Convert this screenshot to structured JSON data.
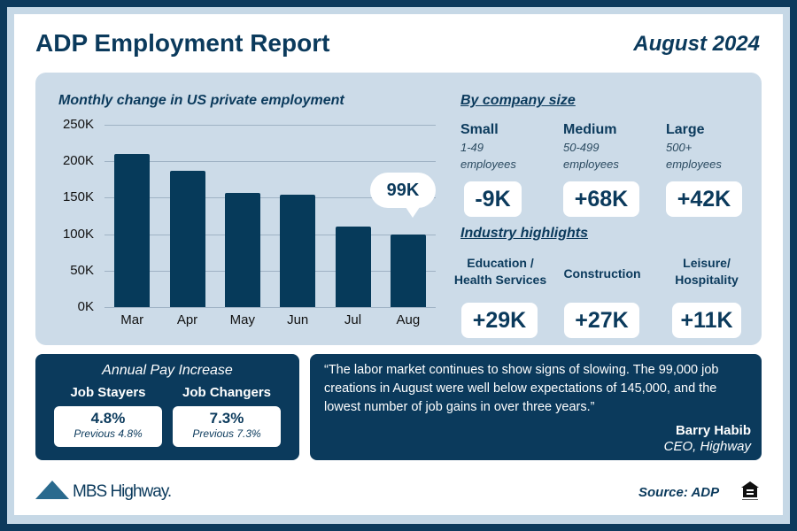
{
  "header": {
    "title": "ADP Employment Report",
    "date": "August 2024"
  },
  "chart_data": {
    "type": "bar",
    "title": "Monthly change in US private employment",
    "categories": [
      "Mar",
      "Apr",
      "May",
      "Jun",
      "Jul",
      "Aug"
    ],
    "values": [
      210,
      187,
      156,
      154,
      110,
      99
    ],
    "unit": "K",
    "ylim": [
      0,
      250
    ],
    "yticks": [
      "0K",
      "50K",
      "100K",
      "150K",
      "200K",
      "250K"
    ],
    "grid": true,
    "callout": "99K",
    "bar_color": "#063a5a"
  },
  "company_size": {
    "title": "By company size",
    "items": [
      {
        "label": "Small",
        "range": "1-49",
        "sub": "employees",
        "value": "-9K"
      },
      {
        "label": "Medium",
        "range": "50-499",
        "sub": "employees",
        "value": "+68K"
      },
      {
        "label": "Large",
        "range": "500+",
        "sub": "employees",
        "value": "+42K"
      }
    ]
  },
  "industry": {
    "title": "Industry highlights",
    "items": [
      {
        "label": "Education / Health Services",
        "value": "+29K"
      },
      {
        "label": "Construction",
        "value": "+27K"
      },
      {
        "label": "Leisure/ Hospitality",
        "value": "+11K"
      }
    ]
  },
  "pay": {
    "title": "Annual Pay Increase",
    "items": [
      {
        "label": "Job Stayers",
        "value": "4.8%",
        "prev": "Previous 4.8%"
      },
      {
        "label": "Job Changers",
        "value": "7.3%",
        "prev": "Previous 7.3%"
      }
    ]
  },
  "quote": {
    "text": "“The labor market continues to show signs of slowing. The 99,000 job creations in August were well below expectations of 145,000, and the lowest number of job gains in over three years.”",
    "author": "Barry Habib",
    "role": "CEO, Highway"
  },
  "footer": {
    "logo": "MBS Highway.",
    "source": "Source: ADP",
    "eho_icon": "equal-housing-opportunity-icon"
  }
}
